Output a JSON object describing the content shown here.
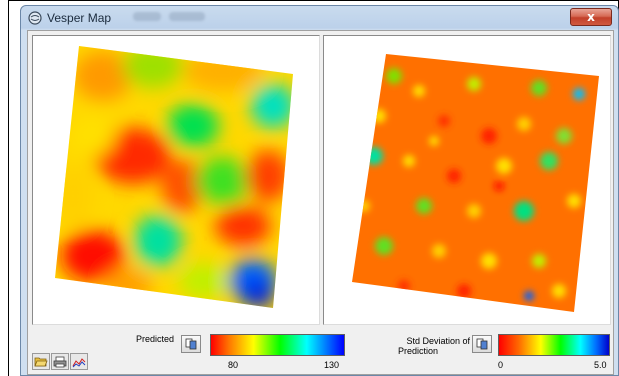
{
  "window": {
    "title": "Vesper Map",
    "close_label": "x"
  },
  "icons": {
    "app": "map-app-icon",
    "close": "close-icon",
    "open": "open-folder-icon",
    "print": "printer-icon",
    "plot": "variogram-plot-icon",
    "copy": "copy-icon"
  },
  "maps": {
    "predicted": {
      "name": "predicted-map"
    },
    "std_dev": {
      "name": "std-deviation-map"
    }
  },
  "legend": {
    "predicted": {
      "label": "Predicted",
      "min_label": "80",
      "max_label": "130"
    },
    "std_dev": {
      "label_line1": "Std Deviation of",
      "label_line2": "Prediction",
      "min_label": "0",
      "max_label": "5.0"
    }
  },
  "colors": {
    "low": "#ff0000",
    "mid": "#ffff00",
    "high": "#0000ff"
  }
}
